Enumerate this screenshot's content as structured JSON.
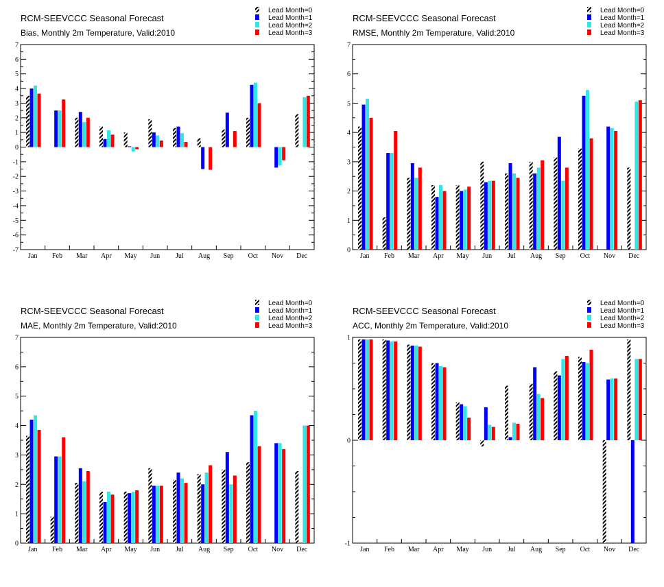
{
  "series_names": [
    "Lead Month=0",
    "Lead Month=1",
    "Lead Month=2",
    "Lead Month=3"
  ],
  "series_colors": [
    "#000000",
    "#0000ff",
    "#33e6e6",
    "#ff0000"
  ],
  "categories": [
    "Jan",
    "Feb",
    "Mar",
    "Apr",
    "May",
    "Jun",
    "Jul",
    "Aug",
    "Sep",
    "Oct",
    "Nov",
    "Dec"
  ],
  "chart_data": [
    {
      "type": "bar",
      "title": "RCM-SEEVCCC Seasonal Forecast",
      "subtitle": "Bias, Monthly 2m Temperature, Valid:2010",
      "ylim": [
        -7,
        7
      ],
      "yticks": [
        -7,
        -6,
        -5,
        -4,
        -3,
        -2,
        -1,
        0,
        1,
        2,
        3,
        4,
        5,
        6,
        7
      ],
      "legend_position": "top-right",
      "series": [
        {
          "name": "Lead Month=0",
          "values": [
            3.5,
            0,
            2.0,
            1.4,
            1.0,
            1.9,
            1.3,
            0.6,
            1.2,
            2.0,
            0.0,
            2.25
          ]
        },
        {
          "name": "Lead Month=1",
          "values": [
            4.0,
            2.5,
            2.4,
            0.55,
            0.05,
            1.0,
            1.4,
            -1.5,
            2.35,
            4.25,
            -1.4,
            0
          ]
        },
        {
          "name": "Lead Month=2",
          "values": [
            4.2,
            2.5,
            1.7,
            1.15,
            -0.3,
            0.8,
            0.95,
            0,
            0,
            4.4,
            -1.25,
            3.4
          ]
        },
        {
          "name": "Lead Month=3",
          "values": [
            3.65,
            3.25,
            2.0,
            0.85,
            -0.15,
            0.45,
            0.35,
            -1.55,
            1.1,
            3.0,
            -0.9,
            3.5
          ]
        }
      ]
    },
    {
      "type": "bar",
      "title": "RCM-SEEVCCC Seasonal Forecast",
      "subtitle": "RMSE, Monthly 2m Temperature, Valid:2010",
      "ylim": [
        0,
        7
      ],
      "yticks": [
        0,
        1,
        2,
        3,
        4,
        5,
        6,
        7
      ],
      "legend_position": "top-right",
      "series": [
        {
          "name": "Lead Month=0",
          "values": [
            4.2,
            1.1,
            2.45,
            2.2,
            2.2,
            3.0,
            2.6,
            3.0,
            3.15,
            3.45,
            0,
            2.8
          ]
        },
        {
          "name": "Lead Month=1",
          "values": [
            4.95,
            3.3,
            2.95,
            1.8,
            2.0,
            2.3,
            2.95,
            2.6,
            3.85,
            5.25,
            4.2,
            0
          ]
        },
        {
          "name": "Lead Month=2",
          "values": [
            5.15,
            3.3,
            2.45,
            2.2,
            2.05,
            2.35,
            2.6,
            2.8,
            2.35,
            5.45,
            4.15,
            5.05
          ]
        },
        {
          "name": "Lead Month=3",
          "values": [
            4.5,
            4.05,
            2.8,
            2.0,
            2.15,
            2.35,
            2.45,
            3.05,
            2.8,
            3.8,
            4.05,
            5.1
          ]
        }
      ]
    },
    {
      "type": "bar",
      "title": "RCM-SEEVCCC Seasonal Forecast",
      "subtitle": "MAE, Monthly 2m Temperature, Valid:2010",
      "ylim": [
        0,
        7
      ],
      "yticks": [
        0,
        1,
        2,
        3,
        4,
        5,
        6,
        7
      ],
      "legend_position": "top-right",
      "series": [
        {
          "name": "Lead Month=0",
          "values": [
            3.65,
            0.9,
            2.05,
            1.75,
            1.75,
            2.55,
            2.15,
            2.35,
            2.5,
            2.75,
            0,
            2.45
          ]
        },
        {
          "name": "Lead Month=1",
          "values": [
            4.2,
            2.95,
            2.55,
            1.4,
            1.7,
            1.95,
            2.4,
            2.0,
            3.1,
            4.35,
            3.4,
            0
          ]
        },
        {
          "name": "Lead Month=2",
          "values": [
            4.35,
            2.95,
            2.1,
            1.75,
            1.75,
            1.95,
            2.2,
            2.4,
            2.0,
            4.5,
            3.4,
            4.0
          ]
        },
        {
          "name": "Lead Month=3",
          "values": [
            3.85,
            3.6,
            2.45,
            1.65,
            1.8,
            1.95,
            2.05,
            2.65,
            2.3,
            3.3,
            3.2,
            4.0
          ]
        }
      ]
    },
    {
      "type": "bar",
      "title": "RCM-SEEVCCC Seasonal Forecast",
      "subtitle": "ACC, Monthly 2m Temperature, Valid:2010",
      "ylim": [
        -1,
        1
      ],
      "yticks": [
        -1,
        0,
        1
      ],
      "legend_position": "top-right",
      "series": [
        {
          "name": "Lead Month=0",
          "values": [
            0.98,
            0.98,
            0.93,
            0.75,
            0.37,
            -0.06,
            0.53,
            0.55,
            0.67,
            0.81,
            -1.0,
            0.98
          ]
        },
        {
          "name": "Lead Month=1",
          "values": [
            0.98,
            0.97,
            0.92,
            0.75,
            0.35,
            0.32,
            0.03,
            0.71,
            0.63,
            0.76,
            0.59,
            -1.0
          ]
        },
        {
          "name": "Lead Month=2",
          "values": [
            0.98,
            0.96,
            0.92,
            0.72,
            0.33,
            0.15,
            0.17,
            0.45,
            0.79,
            0.75,
            0.6,
            0.79
          ]
        },
        {
          "name": "Lead Month=3",
          "values": [
            0.98,
            0.96,
            0.91,
            0.71,
            0.22,
            0.13,
            0.16,
            0.41,
            0.82,
            0.88,
            0.6,
            0.79
          ]
        }
      ]
    }
  ]
}
